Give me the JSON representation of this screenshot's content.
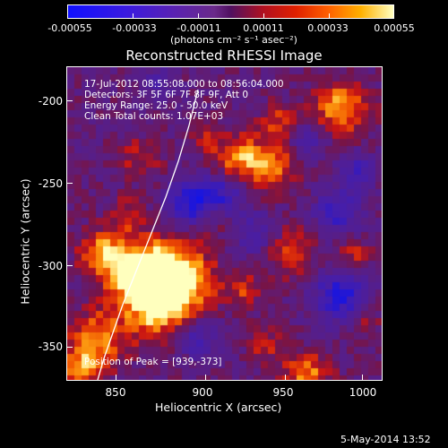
{
  "colorbar": {
    "tick_labels": [
      "-0.00055",
      "-0.00033",
      "-0.00011",
      "0.00011",
      "0.00033",
      "0.00055"
    ],
    "units": "(photons cm⁻² s⁻¹ asec⁻²)"
  },
  "title": "Reconstructed RHESSI Image",
  "overlay": {
    "time": "17-Jul-2012 08:55:08.000 to 08:56:04.000",
    "detectors": "Detectors: 3F 5F 6F 7F 8F 9F, Att 0",
    "energy": "Energy Range: 25.0 - 50.0 keV",
    "clean": "Clean    Total counts: 1.07E+03",
    "peak": "Position of Peak = [939,-373]"
  },
  "axes": {
    "xlabel": "Heliocentric X (arcsec)",
    "ylabel": "Heliocentric Y (arcsec)",
    "x_ticks": [
      "850",
      "900",
      "950",
      "1000"
    ],
    "y_ticks": [
      "-200",
      "-250",
      "-300",
      "-350"
    ],
    "x_range": [
      817,
      1011
    ],
    "y_range": [
      -372,
      -179
    ]
  },
  "footer_date": "5-May-2014 13:52",
  "colors": {
    "background": "#000000",
    "limb_line": "#ffffff"
  }
}
